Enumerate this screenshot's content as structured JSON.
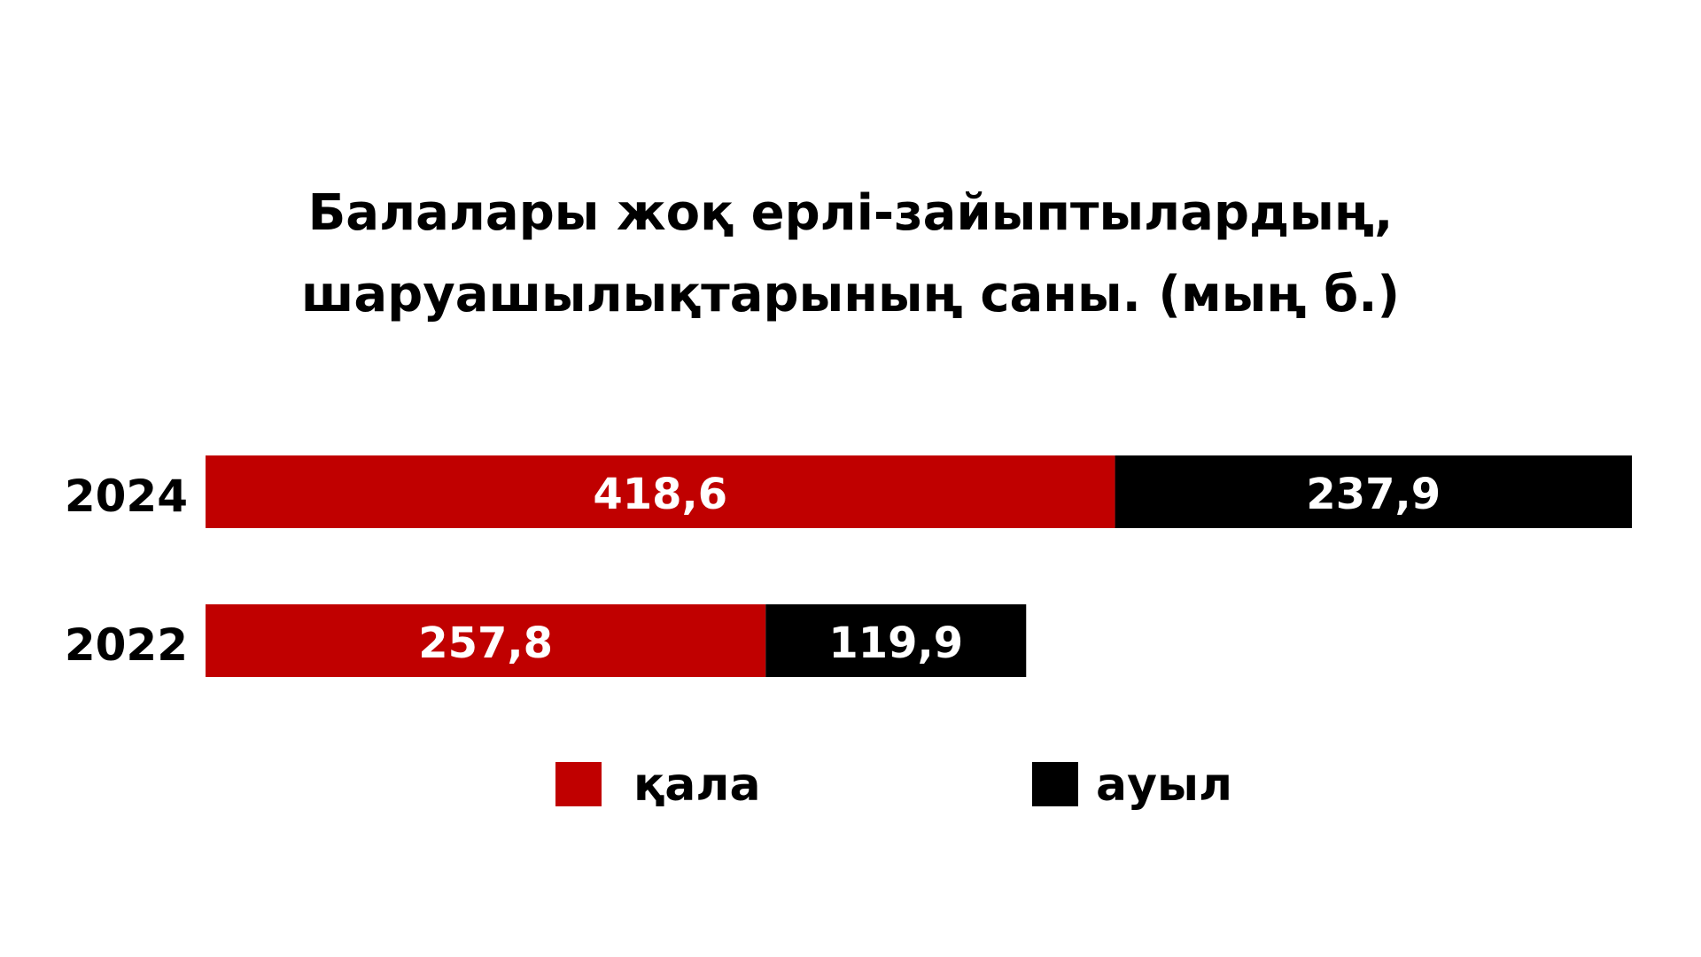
{
  "chart_data": {
    "type": "bar",
    "orientation": "horizontal",
    "stacked": true,
    "title_lines": [
      "Балалары жоқ ерлі-зайыптылардың,",
      "шаруашылықтарының саны. (мың б.)"
    ],
    "categories": [
      "2024",
      "2022"
    ],
    "series": [
      {
        "name": "қала",
        "color": "#c00000",
        "values": [
          418.6,
          257.8
        ],
        "labels": [
          "418,6",
          "257,8"
        ]
      },
      {
        "name": "ауыл",
        "color": "#000000",
        "values": [
          237.9,
          119.9
        ],
        "labels": [
          "237,9",
          "119,9"
        ]
      }
    ],
    "xlim": [
      0,
      656.5
    ],
    "grid": false,
    "legend_position": "bottom"
  }
}
